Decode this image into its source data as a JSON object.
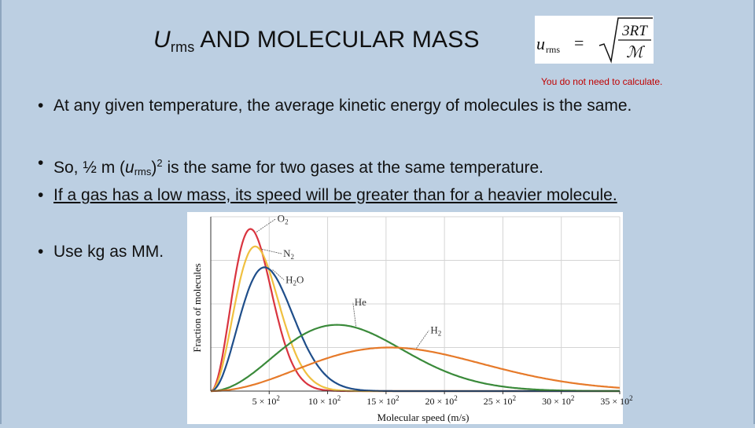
{
  "slide": {
    "title": {
      "symbol": "U",
      "subscript": "rms",
      "rest": " AND MOLECULAR MASS"
    },
    "formula": {
      "lhs": "u",
      "lhs_sub": "rms",
      "equals": "=",
      "numerator": "3RT",
      "denominator": "ℳ"
    },
    "note": "You do not need to calculate.",
    "bullets": [
      {
        "marker": "•",
        "text": "At any given temperature, the average kinetic energy of molecules is the same."
      },
      {
        "marker": "•",
        "pre": "So, ½ m (",
        "italic": "u",
        "sub": "rms",
        "close": ")",
        "sup": "2",
        "post": " is the same for two gases at the same temperature."
      },
      {
        "marker": "•",
        "text": "If a gas has a low mass, its speed will be greater than for a heavier molecule."
      },
      {
        "marker": "•",
        "text": "Use kg as MM."
      }
    ]
  },
  "chart_data": {
    "type": "line",
    "xlabel": "Molecular speed (m/s)",
    "ylabel": "Fraction of molecules",
    "xlim": [
      0,
      3500
    ],
    "ylim": [
      0,
      1
    ],
    "x_ticks": [
      {
        "value": 500,
        "label": "5 × 10",
        "exp": "2"
      },
      {
        "value": 1000,
        "label": "10 × 10",
        "exp": "2"
      },
      {
        "value": 1500,
        "label": "15 × 10",
        "exp": "2"
      },
      {
        "value": 2000,
        "label": "20 × 10",
        "exp": "2"
      },
      {
        "value": 2500,
        "label": "25 × 10",
        "exp": "2"
      },
      {
        "value": 3000,
        "label": "30 × 10",
        "exp": "2"
      },
      {
        "value": 3500,
        "label": "35 × 10",
        "exp": "2"
      }
    ],
    "grid": true,
    "series": [
      {
        "name": "O",
        "sub": "2",
        "color": "#d9343f",
        "peak_speed": 340,
        "peak_height": 0.93,
        "label_x": 570,
        "label_y": 0.97
      },
      {
        "name": "N",
        "sub": "2",
        "color": "#f0c040",
        "peak_speed": 380,
        "peak_height": 0.83,
        "label_x": 620,
        "label_y": 0.77
      },
      {
        "name": "H",
        "sub": "2",
        "suffix": "O",
        "color": "#1f4e8a",
        "peak_speed": 460,
        "peak_height": 0.71,
        "label_x": 640,
        "label_y": 0.62
      },
      {
        "name": "He",
        "color": "#3a8a3a",
        "peak_speed": 1080,
        "peak_height": 0.38,
        "label_x": 1230,
        "label_y": 0.49
      },
      {
        "name": "H",
        "sub": "2",
        "color": "#e67a2a",
        "peak_speed": 1530,
        "peak_height": 0.25,
        "label_x": 1880,
        "label_y": 0.33
      }
    ]
  }
}
